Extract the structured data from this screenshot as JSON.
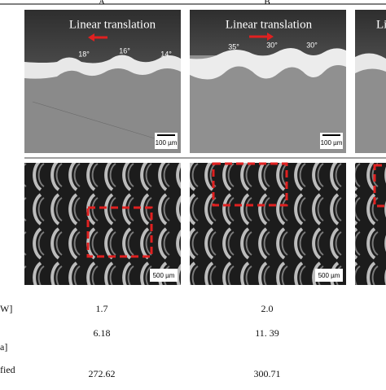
{
  "header": {
    "labels": [
      "A",
      "B"
    ]
  },
  "panels": [
    {
      "caption": "Linear translation",
      "angles": [
        "18°",
        "16°",
        "14°"
      ],
      "scale_top": "100 µm",
      "scale_bottom": "500 µm"
    },
    {
      "caption": "Linear translation",
      "angles": [
        "35°",
        "30°",
        "30°"
      ],
      "scale_top": "100 µm",
      "scale_bottom": "500 µm"
    },
    {
      "caption": "Li"
    }
  ],
  "table": {
    "rows": [
      {
        "label": "W]",
        "values": [
          "1.7",
          "2.0"
        ]
      },
      {
        "label": "a]",
        "values": [
          "6.18",
          "11. 39"
        ]
      },
      {
        "label": "fied",
        "values": [
          "272.62",
          "300.71"
        ]
      }
    ]
  }
}
